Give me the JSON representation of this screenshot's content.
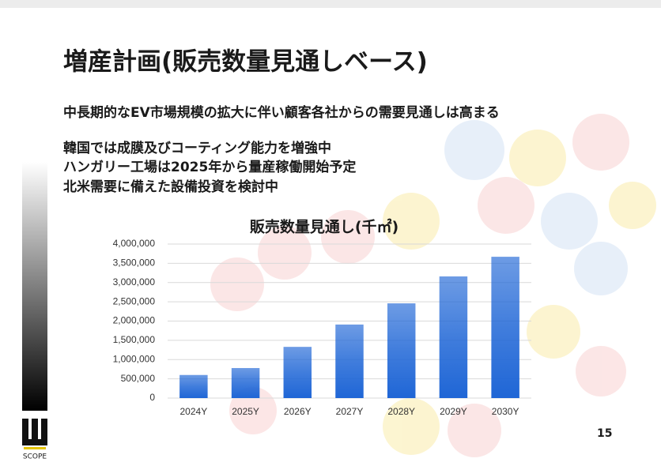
{
  "header": {
    "title": "増産計画(販売数量見通しベース)",
    "subtitle": "中長期的なEV市場規模の拡大に伴い顧客各社からの需要見通しは高まる",
    "bullets": [
      "韓国では成膜及びコーティング能力を増強中",
      "ハンガリー工場は2025年から量産稼働開始予定",
      "北米需要に備えた設備投資を検討中"
    ]
  },
  "chart_data": {
    "type": "bar",
    "title": "販売数量見通し(千㎡)",
    "categories": [
      "2024Y",
      "2025Y",
      "2026Y",
      "2027Y",
      "2028Y",
      "2029Y",
      "2030Y"
    ],
    "values": [
      600000,
      780000,
      1330000,
      1910000,
      2460000,
      3160000,
      3670000
    ],
    "color": "#1f66d6",
    "ylim": [
      0,
      4000000
    ],
    "yticks": [
      0,
      {
        "value": 500000,
        "label": "500,000"
      },
      {
        "value": 1000000,
        "label": "1,000,000"
      },
      {
        "value": 1500000,
        "label": "1,500,000"
      },
      {
        "value": 2000000,
        "label": "2,000,000"
      },
      {
        "value": 2500000,
        "label": "2,500,000"
      },
      {
        "value": 3000000,
        "label": "3,000,000"
      },
      {
        "value": 3500000,
        "label": "3,500,000"
      },
      {
        "value": 4000000,
        "label": "4,000,000"
      }
    ],
    "grid": true
  },
  "footer": {
    "page": "15",
    "logo": "SCOPE"
  }
}
